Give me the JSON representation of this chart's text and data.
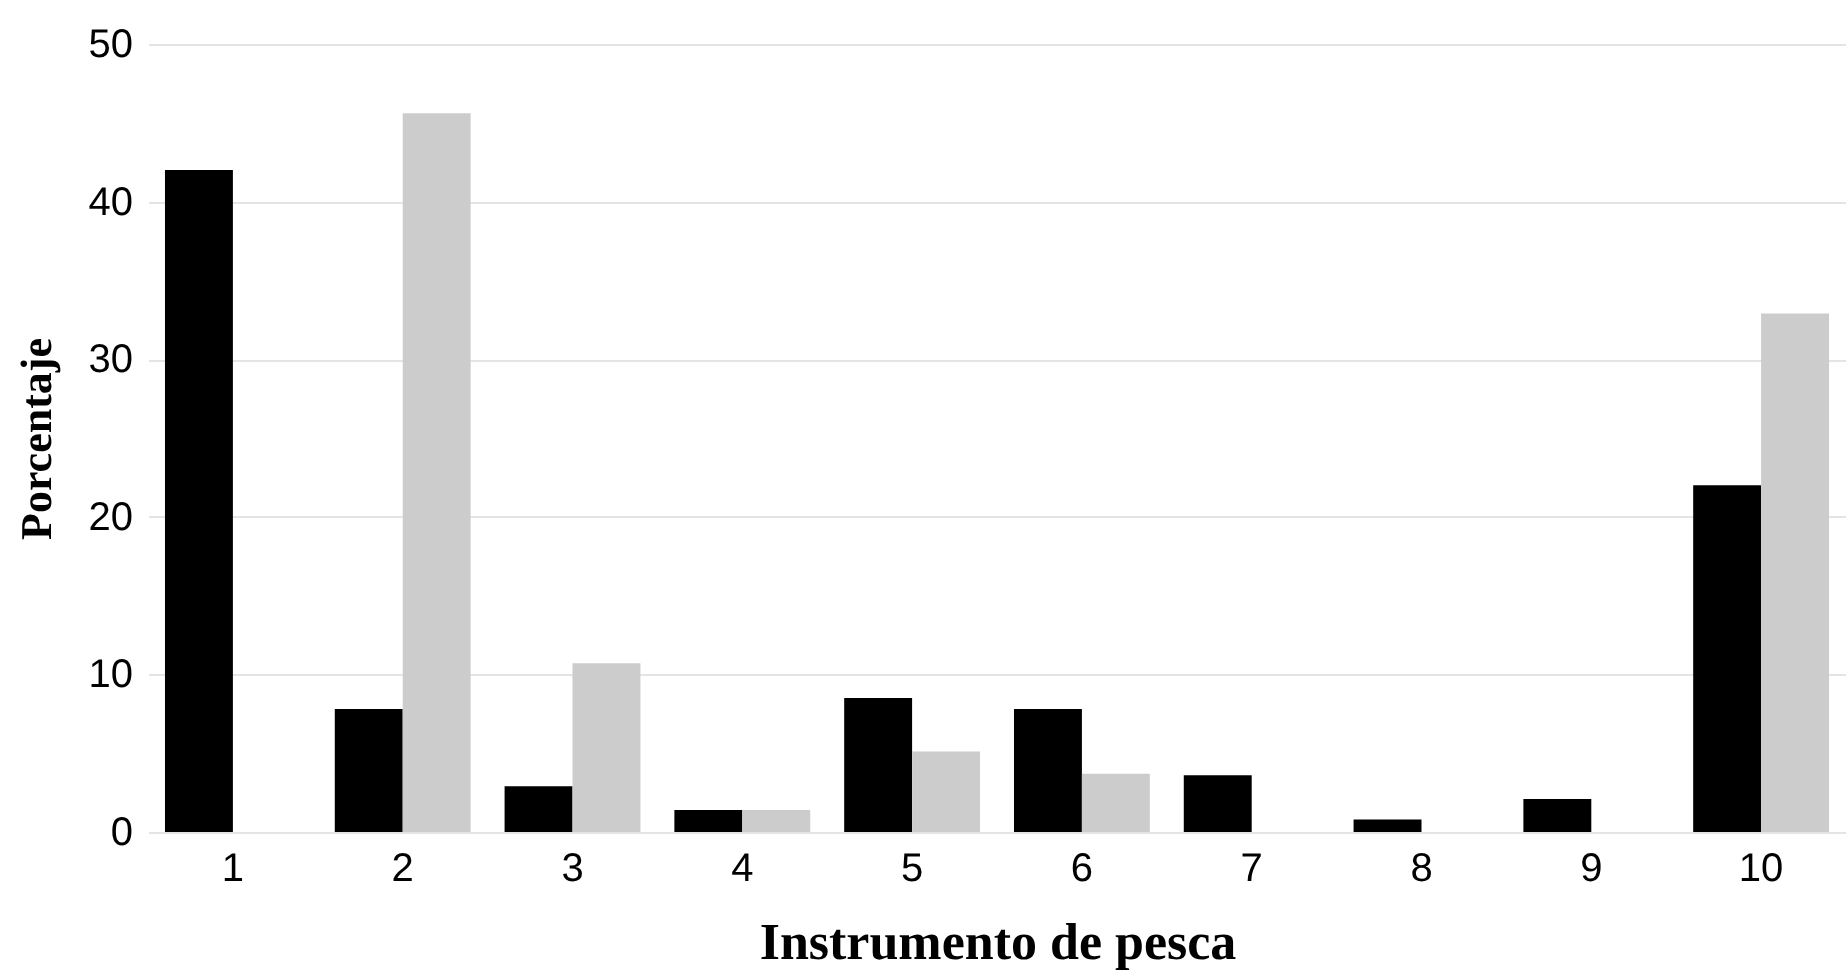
{
  "chart_data": {
    "type": "bar",
    "xlabel": "Instrumento de pesca",
    "ylabel": "Porcentaje",
    "categories": [
      "1",
      "2",
      "3",
      "4",
      "5",
      "6",
      "7",
      "8",
      "9",
      "10"
    ],
    "series": [
      {
        "color": "#000000",
        "values": [
          42.0,
          7.8,
          2.9,
          1.4,
          8.5,
          7.8,
          3.6,
          0.8,
          2.1,
          22.0
        ]
      },
      {
        "color": "#cccccc",
        "values": [
          0,
          45.6,
          10.7,
          1.4,
          5.1,
          3.7,
          0,
          0,
          0,
          32.9
        ]
      }
    ],
    "ylim": [
      0,
      50
    ],
    "yticks": [
      0,
      10,
      20,
      30,
      40,
      50
    ],
    "grid": "y"
  }
}
